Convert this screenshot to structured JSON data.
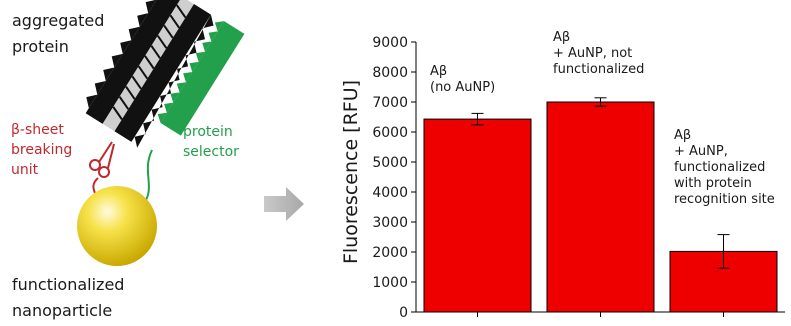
{
  "illustration": {
    "aggregated_protein": [
      "aggregated",
      "protein"
    ],
    "beta_sheet_breaker": [
      "β-sheet",
      "breaking",
      "unit"
    ],
    "protein_selector": [
      "protein",
      "selector"
    ],
    "functionalized_nanoparticle": [
      "functionalized",
      "nanoparticle"
    ],
    "colors": {
      "breaker": "#c0282d",
      "selector": "#22a04b",
      "particle": "#f2d20a",
      "arrow": "#b3b3b3"
    }
  },
  "chart_data": {
    "type": "bar",
    "categories": [
      "Aβ (no AuNP)",
      "Aβ + AuNP, not functionalized",
      "Aβ + AuNP, functionalized with protein recognition site"
    ],
    "values": [
      6430,
      7000,
      2020
    ],
    "errors": [
      190,
      140,
      560
    ],
    "bar_color": "#ee0000",
    "ylabel": "Fluorescence [RFU]",
    "ylim": [
      0,
      9000
    ],
    "yticks": [
      0,
      1000,
      2000,
      3000,
      4000,
      5000,
      6000,
      7000,
      8000,
      9000
    ],
    "annotations": [
      [
        "Aβ",
        "(no AuNP)"
      ],
      [
        "Aβ",
        "+ AuNP, not",
        "functionalized"
      ],
      [
        "Aβ",
        "+ AuNP,",
        "functionalized",
        "with protein",
        "recognition site"
      ]
    ]
  }
}
